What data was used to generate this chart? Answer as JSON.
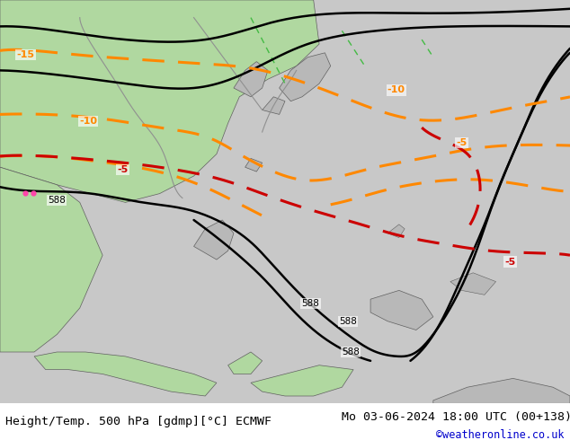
{
  "title_left": "Height/Temp. 500 hPa [gdmp][°C] ECMWF",
  "title_right": "Mo 03-06-2024 18:00 UTC (00+138)",
  "credit": "©weatheronline.co.uk",
  "background_color": "#c8c8c8",
  "land_color_green": "#b0d8a0",
  "land_color_gray": "#b8b8b8",
  "sea_color": "#d0d0d0",
  "bottom_bar_color": "#ffffff",
  "title_fontsize": 9.5,
  "credit_color": "#0000cc",
  "credit_fontsize": 8.5,
  "fig_width": 6.34,
  "fig_height": 4.9,
  "dpi": 100
}
